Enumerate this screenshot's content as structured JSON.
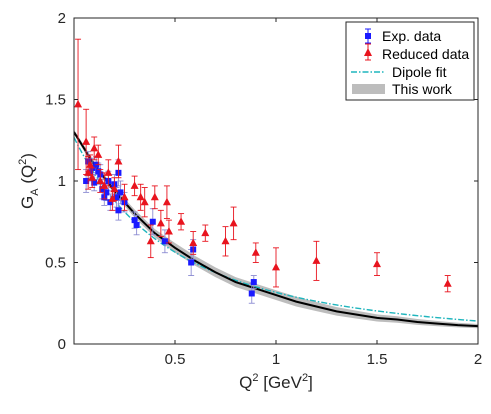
{
  "chart_data": {
    "type": "scatter",
    "xlim": [
      0,
      2
    ],
    "ylim": [
      0,
      2
    ],
    "x_ticks": [
      0.5,
      1,
      1.5,
      2
    ],
    "x_tick_labels": [
      "0.5",
      "1",
      "1.5",
      "2"
    ],
    "y_ticks": [
      0,
      0.5,
      1,
      1.5,
      2
    ],
    "y_tick_labels": [
      "0",
      "0.5",
      "1",
      "1.5",
      "2"
    ],
    "xlabel": {
      "base": "Q",
      "sup": "2",
      "rest": " [GeV",
      "sup2": "2",
      "end": "]"
    },
    "ylabel": {
      "base": "G",
      "sub": "A",
      "open": " (Q",
      "sup": "2",
      "close": ")"
    },
    "legend": {
      "position": "top-right",
      "entries": [
        {
          "label": "Exp. data",
          "kind": "errorbar-square",
          "color": "#1a1aff"
        },
        {
          "label": "Reduced data",
          "kind": "errorbar-triangle",
          "color": "#e8141e"
        },
        {
          "label": "Dipole fit",
          "kind": "dashdot-line",
          "color": "#1fb5bd"
        },
        {
          "label": "This work",
          "kind": "band",
          "color": "#bdbdbd"
        }
      ]
    },
    "series": [
      {
        "name": "Exp. data",
        "marker": "square",
        "color": "#1a1aff",
        "errorbar_color": "#8c8cd2",
        "points": [
          {
            "x": 0.06,
            "y": 1.0,
            "err": 0.07
          },
          {
            "x": 0.07,
            "y": 1.12,
            "err": 0.06
          },
          {
            "x": 0.08,
            "y": 1.05,
            "err": 0.05
          },
          {
            "x": 0.09,
            "y": 1.08,
            "err": 0.06
          },
          {
            "x": 0.1,
            "y": 0.99,
            "err": 0.05
          },
          {
            "x": 0.11,
            "y": 1.1,
            "err": 0.05
          },
          {
            "x": 0.12,
            "y": 1.06,
            "err": 0.05
          },
          {
            "x": 0.13,
            "y": 1.04,
            "err": 0.06
          },
          {
            "x": 0.14,
            "y": 0.95,
            "err": 0.06
          },
          {
            "x": 0.15,
            "y": 0.9,
            "err": 0.05
          },
          {
            "x": 0.16,
            "y": 0.93,
            "err": 0.05
          },
          {
            "x": 0.17,
            "y": 1.0,
            "err": 0.06
          },
          {
            "x": 0.18,
            "y": 0.87,
            "err": 0.05
          },
          {
            "x": 0.2,
            "y": 0.98,
            "err": 0.06
          },
          {
            "x": 0.21,
            "y": 0.9,
            "err": 0.06
          },
          {
            "x": 0.22,
            "y": 1.05,
            "err": 0.08
          },
          {
            "x": 0.22,
            "y": 0.82,
            "err": 0.06
          },
          {
            "x": 0.23,
            "y": 0.93,
            "err": 0.07
          },
          {
            "x": 0.25,
            "y": 0.87,
            "err": 0.06
          },
          {
            "x": 0.3,
            "y": 0.76,
            "err": 0.05
          },
          {
            "x": 0.31,
            "y": 0.73,
            "err": 0.06
          },
          {
            "x": 0.39,
            "y": 0.75,
            "err": 0.08
          },
          {
            "x": 0.45,
            "y": 0.63,
            "err": 0.07
          },
          {
            "x": 0.58,
            "y": 0.5,
            "err": 0.08
          },
          {
            "x": 0.59,
            "y": 0.58,
            "err": 0.06
          },
          {
            "x": 0.88,
            "y": 0.31,
            "err": 0.06
          },
          {
            "x": 0.89,
            "y": 0.38,
            "err": 0.04
          }
        ]
      },
      {
        "name": "Reduced data",
        "marker": "triangle",
        "color": "#e8141e",
        "errorbar_color": "#e8141e",
        "points": [
          {
            "x": 0.02,
            "y": 1.47,
            "err": 0.4
          },
          {
            "x": 0.06,
            "y": 1.24,
            "err": 0.2
          },
          {
            "x": 0.07,
            "y": 1.05,
            "err": 0.1
          },
          {
            "x": 0.08,
            "y": 1.1,
            "err": 0.06
          },
          {
            "x": 0.09,
            "y": 1.02,
            "err": 0.06
          },
          {
            "x": 0.1,
            "y": 1.2,
            "err": 0.07
          },
          {
            "x": 0.12,
            "y": 1.16,
            "err": 0.06
          },
          {
            "x": 0.13,
            "y": 1.0,
            "err": 0.07
          },
          {
            "x": 0.15,
            "y": 0.97,
            "err": 0.08
          },
          {
            "x": 0.17,
            "y": 1.05,
            "err": 0.08
          },
          {
            "x": 0.19,
            "y": 0.89,
            "err": 0.07
          },
          {
            "x": 0.2,
            "y": 0.95,
            "err": 0.07
          },
          {
            "x": 0.22,
            "y": 1.12,
            "err": 0.1
          },
          {
            "x": 0.25,
            "y": 0.9,
            "err": 0.08
          },
          {
            "x": 0.3,
            "y": 0.97,
            "err": 0.06
          },
          {
            "x": 0.33,
            "y": 0.9,
            "err": 0.08
          },
          {
            "x": 0.35,
            "y": 0.87,
            "err": 0.09
          },
          {
            "x": 0.38,
            "y": 0.63,
            "err": 0.1
          },
          {
            "x": 0.4,
            "y": 0.9,
            "err": 0.07
          },
          {
            "x": 0.43,
            "y": 0.74,
            "err": 0.08
          },
          {
            "x": 0.46,
            "y": 0.87,
            "err": 0.1
          },
          {
            "x": 0.47,
            "y": 0.69,
            "err": 0.07
          },
          {
            "x": 0.53,
            "y": 0.75,
            "err": 0.05
          },
          {
            "x": 0.59,
            "y": 0.62,
            "err": 0.07
          },
          {
            "x": 0.65,
            "y": 0.68,
            "err": 0.05
          },
          {
            "x": 0.75,
            "y": 0.63,
            "err": 0.09
          },
          {
            "x": 0.79,
            "y": 0.74,
            "err": 0.1
          },
          {
            "x": 0.9,
            "y": 0.56,
            "err": 0.06
          },
          {
            "x": 1.0,
            "y": 0.47,
            "err": 0.12
          },
          {
            "x": 1.2,
            "y": 0.51,
            "err": 0.12
          },
          {
            "x": 1.5,
            "y": 0.49,
            "err": 0.07
          },
          {
            "x": 1.85,
            "y": 0.37,
            "err": 0.05
          }
        ]
      },
      {
        "name": "Dipole fit",
        "kind": "dipole",
        "g0": 1.267,
        "mass_squared": 1.0,
        "color": "#1fb5bd"
      },
      {
        "name": "This work",
        "kind": "band",
        "color": "#bdbdbd",
        "line_color": "#000000",
        "central_y": [
          1.3,
          1.1,
          0.94,
          0.8,
          0.68,
          0.59,
          0.51,
          0.44,
          0.38,
          0.34,
          0.3,
          0.26,
          0.23,
          0.2,
          0.18,
          0.16,
          0.15,
          0.135,
          0.125,
          0.116,
          0.11
        ],
        "central_x": [
          0.0,
          0.1,
          0.2,
          0.3,
          0.4,
          0.5,
          0.6,
          0.7,
          0.8,
          0.9,
          1.0,
          1.1,
          1.2,
          1.3,
          1.4,
          1.5,
          1.6,
          1.7,
          1.8,
          1.9,
          2.0
        ],
        "band_halfwidth": [
          0.015,
          0.02,
          0.02,
          0.025,
          0.025,
          0.03,
          0.03,
          0.03,
          0.03,
          0.03,
          0.03,
          0.03,
          0.028,
          0.026,
          0.024,
          0.022,
          0.02,
          0.018,
          0.016,
          0.014,
          0.013
        ]
      }
    ]
  }
}
